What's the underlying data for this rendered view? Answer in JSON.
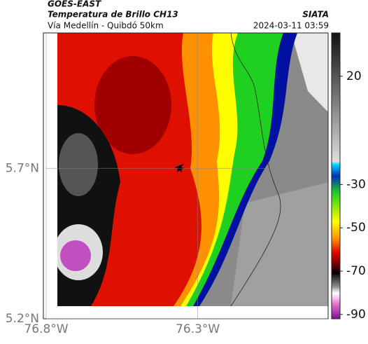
{
  "header": {
    "satellite": "GOES-EAST",
    "product": "Temperatura de Brillo CH13",
    "region": "Vía Medellín - Quibdó 50km",
    "source": "SIATA",
    "timestamp": "2024-03-11 03:59"
  },
  "map": {
    "xlim": [
      -76.8,
      -75.87
    ],
    "ylim": [
      5.2,
      6.15
    ],
    "xticks": [
      {
        "value": -76.8,
        "label": "76.8°W"
      },
      {
        "value": -76.3,
        "label": "76.3°W"
      }
    ],
    "yticks": [
      {
        "value": 5.2,
        "label": "5.2°N"
      },
      {
        "value": 5.7,
        "label": "5.7°N"
      }
    ],
    "grid": true
  },
  "colorbar": {
    "lim": [
      -92,
      40
    ],
    "ticks": [
      20,
      -30,
      -50,
      -70,
      -90
    ]
  }
}
